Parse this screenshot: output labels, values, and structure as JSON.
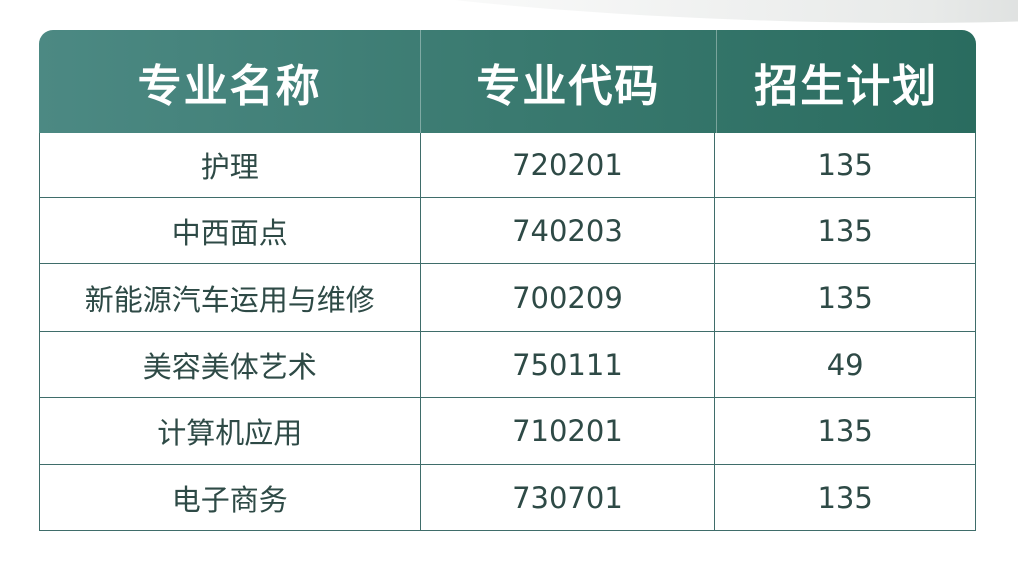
{
  "table": {
    "headers": [
      "专业名称",
      "专业代码",
      "招生计划"
    ],
    "rows": [
      [
        "护理",
        "720201",
        "135"
      ],
      [
        "中西面点",
        "740203",
        "135"
      ],
      [
        "新能源汽车运用与维修",
        "700209",
        "135"
      ],
      [
        "美容美体艺术",
        "750111",
        "49"
      ],
      [
        "计算机应用",
        "710201",
        "135"
      ],
      [
        "电子商务",
        "730701",
        "135"
      ]
    ]
  },
  "colors": {
    "header_start": "#4c8983",
    "header_end": "#2a6c5f",
    "text": "#2e4a46",
    "border": "#3f6d6a"
  }
}
